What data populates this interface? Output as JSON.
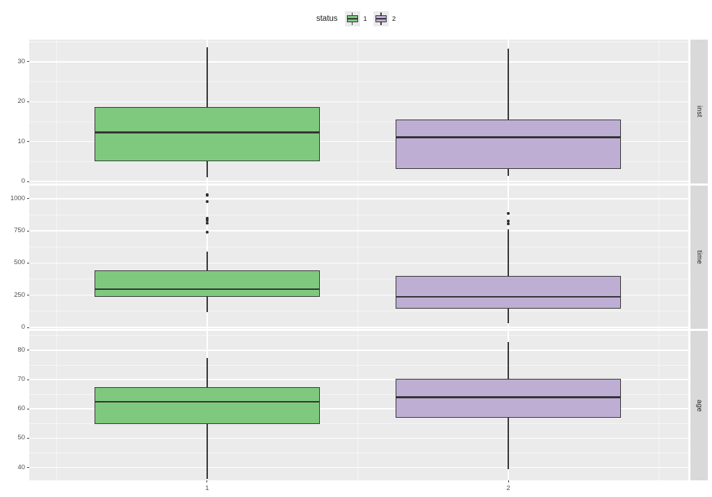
{
  "colors": {
    "panel_background": "#EBEBEB",
    "gridline_major": "#FFFFFF",
    "gridline_minor": "rgba(255,255,255,0.55)",
    "strip_background": "#D9D9D9",
    "strip_text": "#1A1A1A",
    "axis_text": "#4D4D4D",
    "box_border": "#333333",
    "outlier": "#2B2B2B",
    "status_1_fill": "#7FC97F",
    "status_2_fill": "#BEAED4"
  },
  "chart_data": {
    "type": "boxplot",
    "legend_title": "status",
    "legend_position": "top",
    "grid": true,
    "x_categories": [
      "1",
      "2"
    ],
    "x_positions": [
      1,
      2
    ],
    "x_minor": [
      0.5,
      1.5,
      2.5
    ],
    "xlim": [
      0.409,
      2.598
    ],
    "box_width": 0.75,
    "legend_entries": [
      {
        "label": "1",
        "color": "#7FC97F"
      },
      {
        "label": "2",
        "color": "#BEAED4"
      }
    ],
    "facets": [
      {
        "label": "inst",
        "ylim": [
          -0.52,
          35.58
        ],
        "yticks": [
          0,
          10,
          20,
          30
        ],
        "yminor": [
          5,
          15,
          25,
          35
        ],
        "series": [
          {
            "name": "1",
            "color": "#7FC97F",
            "whislo": 1,
            "q1": 5,
            "med": 12.3,
            "q3": 18.7,
            "whishi": 33.6,
            "outliers": []
          },
          {
            "name": "2",
            "color": "#BEAED4",
            "whislo": 1.4,
            "q1": 3.1,
            "med": 11.1,
            "q3": 15.5,
            "whishi": 33.3,
            "outliers": []
          }
        ]
      },
      {
        "label": "time",
        "ylim": [
          -10.8,
          1102.6
        ],
        "yticks": [
          0,
          250,
          500,
          750,
          1000
        ],
        "yminor": [
          125,
          375,
          625,
          875
        ],
        "series": [
          {
            "name": "1",
            "color": "#7FC97F",
            "whislo": 119,
            "q1": 238,
            "med": 297,
            "q3": 443,
            "whishi": 589,
            "outliers": [
              1030,
              978,
              849,
              832,
              811,
              741
            ]
          },
          {
            "name": "2",
            "color": "#BEAED4",
            "whislo": 32,
            "q1": 146,
            "med": 238,
            "q3": 400,
            "whishi": 762,
            "outliers": [
              886,
              826,
              805
            ]
          }
        ]
      },
      {
        "label": "age",
        "ylim": [
          35.61,
          86.64
        ],
        "yticks": [
          40,
          50,
          60,
          70,
          80
        ],
        "yminor": [
          45,
          55,
          65,
          75,
          85
        ],
        "series": [
          {
            "name": "1",
            "color": "#7FC97F",
            "whislo": 36.2,
            "q1": 54.8,
            "med": 62.4,
            "q3": 67.4,
            "whishi": 77.4,
            "outliers": []
          },
          {
            "name": "2",
            "color": "#BEAED4",
            "whislo": 39.5,
            "q1": 57,
            "med": 64,
            "q3": 70.2,
            "whishi": 82.9,
            "outliers": []
          }
        ]
      }
    ]
  }
}
